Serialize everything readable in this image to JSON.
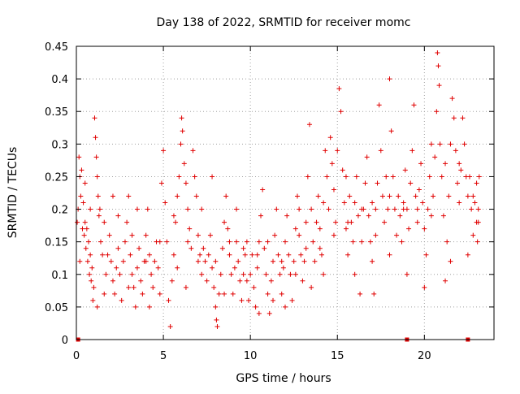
{
  "chart_data": {
    "type": "scatter",
    "title": "Day 138 of 2022, SRMTID for receiver momc",
    "xlabel": "GPS time / hours",
    "ylabel": "SRMTID / TECUs",
    "xlim": [
      0,
      24
    ],
    "ylim": [
      0,
      0.45
    ],
    "grid": true,
    "marker": "+",
    "color": "#e00000",
    "x_ticks": [
      {
        "value": 0,
        "label": "0"
      },
      {
        "value": 5,
        "label": "5"
      },
      {
        "value": 10,
        "label": "10"
      },
      {
        "value": 15,
        "label": "15"
      },
      {
        "value": 20,
        "label": "20"
      }
    ],
    "y_ticks": [
      {
        "value": 0,
        "label": "0"
      },
      {
        "value": 0.05,
        "label": "0.05"
      },
      {
        "value": 0.1,
        "label": "0.1"
      },
      {
        "value": 0.15,
        "label": "0.15"
      },
      {
        "value": 0.2,
        "label": "0.2"
      },
      {
        "value": 0.25,
        "label": "0.25"
      },
      {
        "value": 0.3,
        "label": "0.3"
      },
      {
        "value": 0.35,
        "label": "0.35"
      },
      {
        "value": 0.4,
        "label": "0.4"
      },
      {
        "value": 0.45,
        "label": "0.45"
      }
    ],
    "points": [
      [
        0.1,
        0.2
      ],
      [
        0.15,
        0.28
      ],
      [
        0.2,
        0.25
      ],
      [
        0.25,
        0.22
      ],
      [
        0.3,
        0.26
      ],
      [
        0.35,
        0.17
      ],
      [
        0.4,
        0.21
      ],
      [
        0.45,
        0.16
      ],
      [
        0.5,
        0.18
      ],
      [
        0.55,
        0.14
      ],
      [
        0.6,
        0.17
      ],
      [
        0.65,
        0.12
      ],
      [
        0.7,
        0.15
      ],
      [
        0.75,
        0.1
      ],
      [
        0.8,
        0.13
      ],
      [
        0.85,
        0.09
      ],
      [
        0.9,
        0.11
      ],
      [
        0.95,
        0.06
      ],
      [
        1.0,
        0.08
      ],
      [
        1.05,
        0.34
      ],
      [
        1.1,
        0.31
      ],
      [
        1.15,
        0.28
      ],
      [
        1.2,
        0.25
      ],
      [
        1.25,
        0.22
      ],
      [
        1.3,
        0.19
      ],
      [
        1.35,
        0.2
      ],
      [
        1.4,
        0.15
      ],
      [
        1.5,
        0.13
      ],
      [
        1.6,
        0.07
      ],
      [
        1.7,
        0.1
      ],
      [
        1.8,
        0.13
      ],
      [
        1.9,
        0.16
      ],
      [
        2.0,
        0.12
      ],
      [
        2.1,
        0.09
      ],
      [
        2.2,
        0.07
      ],
      [
        2.3,
        0.11
      ],
      [
        2.4,
        0.14
      ],
      [
        2.5,
        0.1
      ],
      [
        2.6,
        0.06
      ],
      [
        2.7,
        0.12
      ],
      [
        2.8,
        0.15
      ],
      [
        2.9,
        0.18
      ],
      [
        3.0,
        0.22
      ],
      [
        3.1,
        0.13
      ],
      [
        3.2,
        0.1
      ],
      [
        3.3,
        0.08
      ],
      [
        3.4,
        0.05
      ],
      [
        3.5,
        0.11
      ],
      [
        3.6,
        0.14
      ],
      [
        3.7,
        0.09
      ],
      [
        3.8,
        0.07
      ],
      [
        3.9,
        0.12
      ],
      [
        4.0,
        0.16
      ],
      [
        4.1,
        0.2
      ],
      [
        4.2,
        0.13
      ],
      [
        4.3,
        0.1
      ],
      [
        4.4,
        0.08
      ],
      [
        4.5,
        0.12
      ],
      [
        4.6,
        0.15
      ],
      [
        4.7,
        0.11
      ],
      [
        4.8,
        0.07
      ],
      [
        4.9,
        0.24
      ],
      [
        5.0,
        0.29
      ],
      [
        5.1,
        0.21
      ],
      [
        5.2,
        0.15
      ],
      [
        5.3,
        0.06
      ],
      [
        5.4,
        0.02
      ],
      [
        5.5,
        0.09
      ],
      [
        5.6,
        0.13
      ],
      [
        5.7,
        0.18
      ],
      [
        5.8,
        0.22
      ],
      [
        5.9,
        0.25
      ],
      [
        6.0,
        0.3
      ],
      [
        6.05,
        0.34
      ],
      [
        6.1,
        0.32
      ],
      [
        6.2,
        0.27
      ],
      [
        6.3,
        0.24
      ],
      [
        6.4,
        0.2
      ],
      [
        6.5,
        0.17
      ],
      [
        6.6,
        0.14
      ],
      [
        6.7,
        0.29
      ],
      [
        6.8,
        0.25
      ],
      [
        6.9,
        0.22
      ],
      [
        7.0,
        0.16
      ],
      [
        7.1,
        0.13
      ],
      [
        7.2,
        0.1
      ],
      [
        7.3,
        0.14
      ],
      [
        7.4,
        0.12
      ],
      [
        7.5,
        0.09
      ],
      [
        7.6,
        0.13
      ],
      [
        7.7,
        0.16
      ],
      [
        7.8,
        0.11
      ],
      [
        7.9,
        0.08
      ],
      [
        8.0,
        0.05
      ],
      [
        8.05,
        0.03
      ],
      [
        8.1,
        0.02
      ],
      [
        8.2,
        0.07
      ],
      [
        8.3,
        0.1
      ],
      [
        8.4,
        0.14
      ],
      [
        8.5,
        0.18
      ],
      [
        8.6,
        0.22
      ],
      [
        8.7,
        0.17
      ],
      [
        8.8,
        0.13
      ],
      [
        8.9,
        0.1
      ],
      [
        9.0,
        0.07
      ],
      [
        9.1,
        0.11
      ],
      [
        9.2,
        0.15
      ],
      [
        9.3,
        0.12
      ],
      [
        9.4,
        0.09
      ],
      [
        9.5,
        0.06
      ],
      [
        9.6,
        0.1
      ],
      [
        9.7,
        0.13
      ],
      [
        9.8,
        0.09
      ],
      [
        9.9,
        0.06
      ],
      [
        10.0,
        0.1
      ],
      [
        10.1,
        0.13
      ],
      [
        10.2,
        0.08
      ],
      [
        10.3,
        0.05
      ],
      [
        10.4,
        0.11
      ],
      [
        10.5,
        0.15
      ],
      [
        10.6,
        0.19
      ],
      [
        10.7,
        0.23
      ],
      [
        10.8,
        0.14
      ],
      [
        10.9,
        0.1
      ],
      [
        11.0,
        0.07
      ],
      [
        11.1,
        0.04
      ],
      [
        11.2,
        0.09
      ],
      [
        11.3,
        0.12
      ],
      [
        11.4,
        0.16
      ],
      [
        11.5,
        0.2
      ],
      [
        11.6,
        0.13
      ],
      [
        11.7,
        0.1
      ],
      [
        11.8,
        0.07
      ],
      [
        11.9,
        0.11
      ],
      [
        12.0,
        0.15
      ],
      [
        12.1,
        0.19
      ],
      [
        12.2,
        0.13
      ],
      [
        12.3,
        0.1
      ],
      [
        12.4,
        0.06
      ],
      [
        12.5,
        0.12
      ],
      [
        12.6,
        0.17
      ],
      [
        12.7,
        0.22
      ],
      [
        12.8,
        0.16
      ],
      [
        12.9,
        0.13
      ],
      [
        13.0,
        0.09
      ],
      [
        13.1,
        0.12
      ],
      [
        13.2,
        0.18
      ],
      [
        13.3,
        0.25
      ],
      [
        13.4,
        0.33
      ],
      [
        13.5,
        0.2
      ],
      [
        13.6,
        0.15
      ],
      [
        13.7,
        0.12
      ],
      [
        13.8,
        0.18
      ],
      [
        13.9,
        0.22
      ],
      [
        14.0,
        0.17
      ],
      [
        14.1,
        0.13
      ],
      [
        14.2,
        0.21
      ],
      [
        14.3,
        0.29
      ],
      [
        14.4,
        0.25
      ],
      [
        14.5,
        0.2
      ],
      [
        14.6,
        0.31
      ],
      [
        14.7,
        0.27
      ],
      [
        14.8,
        0.23
      ],
      [
        14.9,
        0.18
      ],
      [
        15.0,
        0.29
      ],
      [
        15.1,
        0.385
      ],
      [
        15.2,
        0.35
      ],
      [
        15.3,
        0.26
      ],
      [
        15.4,
        0.21
      ],
      [
        15.5,
        0.17
      ],
      [
        15.6,
        0.13
      ],
      [
        15.7,
        0.22
      ],
      [
        15.8,
        0.18
      ],
      [
        15.9,
        0.15
      ],
      [
        16.0,
        0.21
      ],
      [
        16.1,
        0.25
      ],
      [
        16.2,
        0.19
      ],
      [
        16.3,
        0.07
      ],
      [
        16.4,
        0.15
      ],
      [
        16.5,
        0.2
      ],
      [
        16.6,
        0.24
      ],
      [
        16.7,
        0.28
      ],
      [
        16.8,
        0.19
      ],
      [
        16.9,
        0.15
      ],
      [
        17.0,
        0.21
      ],
      [
        17.1,
        0.07
      ],
      [
        17.2,
        0.16
      ],
      [
        17.3,
        0.24
      ],
      [
        17.4,
        0.36
      ],
      [
        17.5,
        0.29
      ],
      [
        17.6,
        0.22
      ],
      [
        17.7,
        0.18
      ],
      [
        17.8,
        0.25
      ],
      [
        17.9,
        0.2
      ],
      [
        18.0,
        0.4
      ],
      [
        18.1,
        0.32
      ],
      [
        18.2,
        0.25
      ],
      [
        18.3,
        0.2
      ],
      [
        18.4,
        0.16
      ],
      [
        18.5,
        0.22
      ],
      [
        18.6,
        0.19
      ],
      [
        18.7,
        0.15
      ],
      [
        18.8,
        0.21
      ],
      [
        18.9,
        0.26
      ],
      [
        19.0,
        0.2
      ],
      [
        19.1,
        0.17
      ],
      [
        19.2,
        0.24
      ],
      [
        19.3,
        0.29
      ],
      [
        19.4,
        0.36
      ],
      [
        19.5,
        0.22
      ],
      [
        19.6,
        0.18
      ],
      [
        19.7,
        0.23
      ],
      [
        19.8,
        0.27
      ],
      [
        19.9,
        0.21
      ],
      [
        20.0,
        0.17
      ],
      [
        20.1,
        0.13
      ],
      [
        20.2,
        0.2
      ],
      [
        20.3,
        0.25
      ],
      [
        20.4,
        0.3
      ],
      [
        20.5,
        0.22
      ],
      [
        20.6,
        0.28
      ],
      [
        20.7,
        0.35
      ],
      [
        20.75,
        0.44
      ],
      [
        20.8,
        0.42
      ],
      [
        20.85,
        0.39
      ],
      [
        20.9,
        0.3
      ],
      [
        21.0,
        0.25
      ],
      [
        21.1,
        0.19
      ],
      [
        21.2,
        0.09
      ],
      [
        21.3,
        0.15
      ],
      [
        21.4,
        0.22
      ],
      [
        21.5,
        0.3
      ],
      [
        21.6,
        0.37
      ],
      [
        21.7,
        0.34
      ],
      [
        21.8,
        0.29
      ],
      [
        21.9,
        0.24
      ],
      [
        22.0,
        0.21
      ],
      [
        22.1,
        0.26
      ],
      [
        22.2,
        0.34
      ],
      [
        22.3,
        0.3
      ],
      [
        22.4,
        0.25
      ],
      [
        22.5,
        0.22
      ],
      [
        22.6,
        0.25
      ],
      [
        22.7,
        0.2
      ],
      [
        22.8,
        0.16
      ],
      [
        22.9,
        0.21
      ],
      [
        23.0,
        0.18
      ],
      [
        23.05,
        0.15
      ],
      [
        23.1,
        0.2
      ],
      [
        23.15,
        0.25
      ],
      [
        0.05,
        0.18
      ],
      [
        0.2,
        0.12
      ],
      [
        0.5,
        0.24
      ],
      [
        1.2,
        0.05
      ],
      [
        2.1,
        0.22
      ],
      [
        3.0,
        0.08
      ],
      [
        3.5,
        0.2
      ],
      [
        4.2,
        0.05
      ],
      [
        5.8,
        0.11
      ],
      [
        6.3,
        0.08
      ],
      [
        7.2,
        0.2
      ],
      [
        7.8,
        0.25
      ],
      [
        8.5,
        0.07
      ],
      [
        9.2,
        0.2
      ],
      [
        9.8,
        0.15
      ],
      [
        10.5,
        0.04
      ],
      [
        11.3,
        0.06
      ],
      [
        12.0,
        0.05
      ],
      [
        12.8,
        0.2
      ],
      [
        13.5,
        0.08
      ],
      [
        14.2,
        0.1
      ],
      [
        15.5,
        0.25
      ],
      [
        16.0,
        0.1
      ],
      [
        17.0,
        0.12
      ],
      [
        18.0,
        0.13
      ],
      [
        19.0,
        0.1
      ],
      [
        20.0,
        0.08
      ],
      [
        21.5,
        0.12
      ],
      [
        22.5,
        0.13
      ],
      [
        23.0,
        0.24
      ],
      [
        0.8,
        0.2
      ],
      [
        1.6,
        0.18
      ],
      [
        2.4,
        0.19
      ],
      [
        3.2,
        0.16
      ],
      [
        4.0,
        0.12
      ],
      [
        4.8,
        0.15
      ],
      [
        5.6,
        0.19
      ],
      [
        6.4,
        0.15
      ],
      [
        7.0,
        0.12
      ],
      [
        8.0,
        0.12
      ],
      [
        8.8,
        0.15
      ],
      [
        9.6,
        0.14
      ],
      [
        10.4,
        0.13
      ],
      [
        11.0,
        0.15
      ],
      [
        11.8,
        0.12
      ],
      [
        12.6,
        0.1
      ],
      [
        13.2,
        0.14
      ],
      [
        14.0,
        0.14
      ],
      [
        14.8,
        0.16
      ],
      [
        15.6,
        0.18
      ],
      [
        16.4,
        0.2
      ],
      [
        17.2,
        0.2
      ],
      [
        18.0,
        0.22
      ],
      [
        18.8,
        0.2
      ],
      [
        19.6,
        0.2
      ],
      [
        20.4,
        0.19
      ],
      [
        21.2,
        0.27
      ],
      [
        22.0,
        0.27
      ],
      [
        22.8,
        0.22
      ],
      [
        23.1,
        0.18
      ]
    ],
    "zero_markers_x": [
      0.1,
      19.0,
      22.5
    ]
  }
}
